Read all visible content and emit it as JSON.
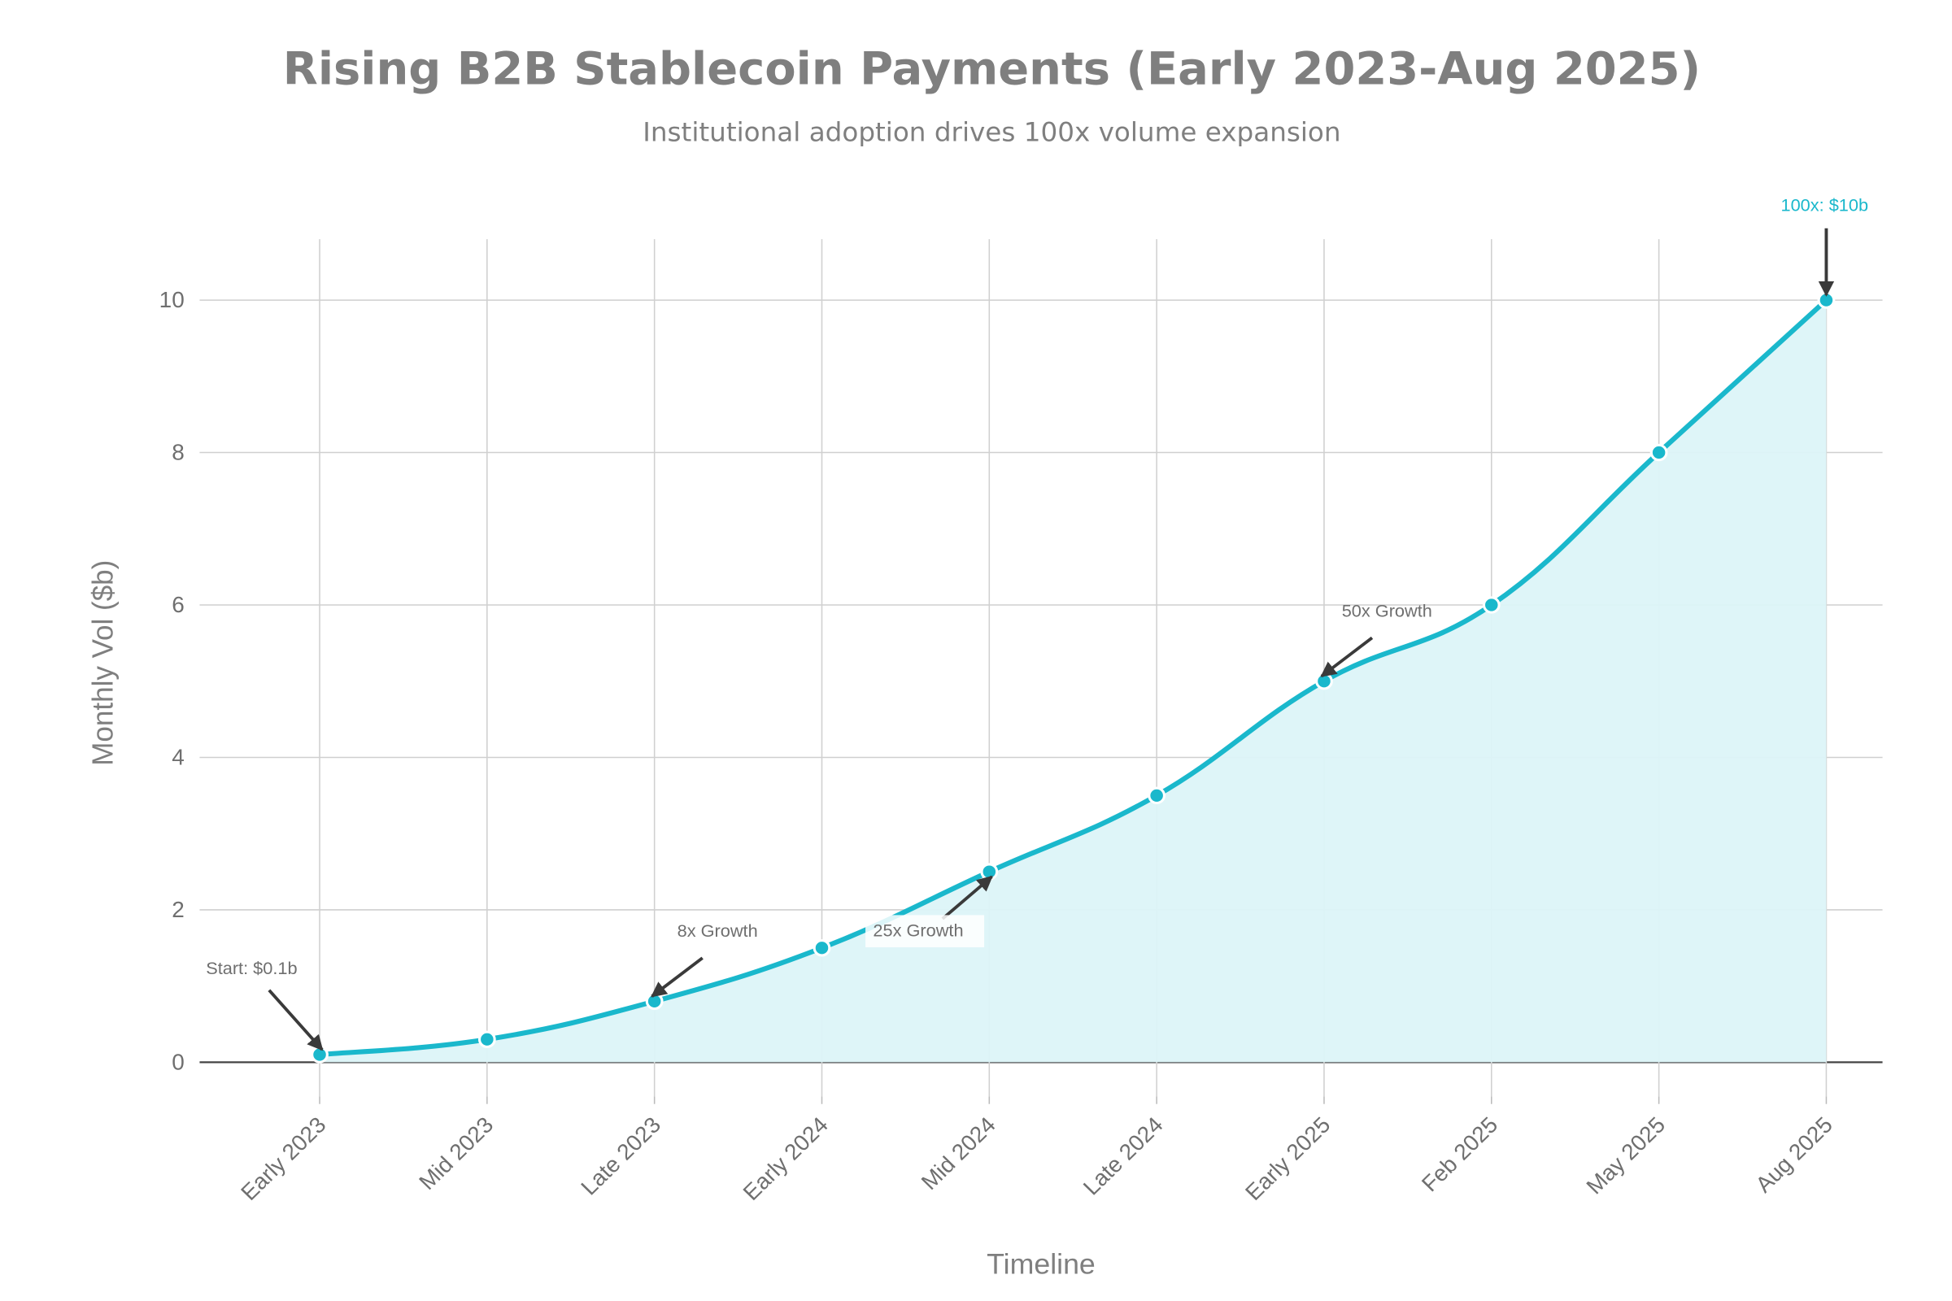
{
  "chart_data": {
    "type": "area",
    "title": "Rising B2B Stablecoin Payments (Early 2023-Aug 2025)",
    "subtitle": "Institutional adoption drives 100x volume expansion",
    "xlabel": "Timeline",
    "ylabel": "Monthly Vol ($b)",
    "categories": [
      "Early 2023",
      "Mid 2023",
      "Late 2023",
      "Early 2024",
      "Mid 2024",
      "Late 2024",
      "Early 2025",
      "Feb 2025",
      "May 2025",
      "Aug 2025"
    ],
    "values": [
      0.1,
      0.3,
      0.8,
      1.5,
      2.5,
      3.5,
      5,
      6,
      8,
      10
    ],
    "ylim": [
      -0.45,
      10.8
    ],
    "yticks": [
      0,
      2,
      4,
      6,
      8,
      10
    ],
    "grid": true,
    "line_color": "#1ab8cc",
    "fill_color": "#dcf4f8",
    "annotations": [
      {
        "text": "Start: $0.1b",
        "index": 0,
        "color": "#6f6f6f"
      },
      {
        "text": "8x Growth",
        "index": 2,
        "color": "#6f6f6f"
      },
      {
        "text": "25x Growth",
        "index": 4,
        "color": "#6f6f6f"
      },
      {
        "text": "50x Growth",
        "index": 6,
        "color": "#6f6f6f"
      },
      {
        "text": "100x: $10b",
        "index": 9,
        "color": "#1ab8cc"
      }
    ]
  }
}
